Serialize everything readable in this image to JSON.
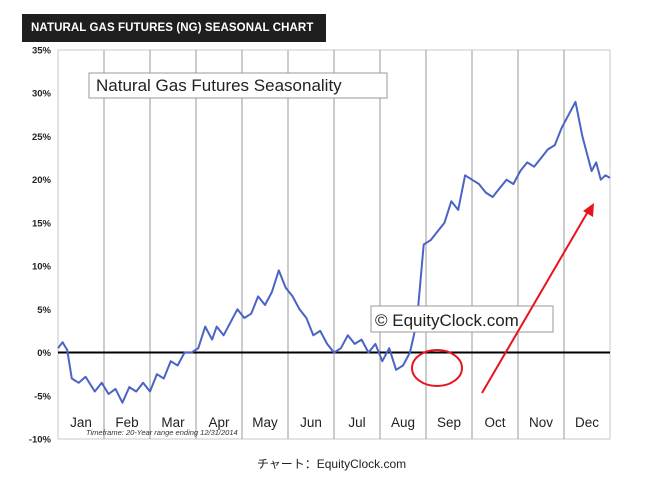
{
  "header": {
    "banner_title": "NATURAL GAS FUTURES (NG) SEASONAL CHART"
  },
  "footer": {
    "caption": "チャート：EquityClock.com"
  },
  "colors": {
    "line": "#4a63c4",
    "annotation": "#e8141c",
    "banner_bg": "#1f1f1f",
    "grid": "#999999"
  },
  "chart_data": {
    "type": "line",
    "title": "Natural Gas Futures Seasonality",
    "watermark": "© EquityClock.com",
    "timeframe_note": "Timeframe: 20-Year range ending 12/31/2014",
    "xlabel": "",
    "ylabel": "",
    "ylim": [
      -10,
      35
    ],
    "xlim": [
      0,
      12
    ],
    "y_ticks": [
      "35%",
      "30%",
      "25%",
      "20%",
      "15%",
      "10%",
      "5%",
      "0%",
      "-5%",
      "-10%"
    ],
    "months": [
      "Jan",
      "Feb",
      "Mar",
      "Apr",
      "May",
      "Jun",
      "Jul",
      "Aug",
      "Sep",
      "Oct",
      "Nov",
      "Dec"
    ],
    "grid": "vertical lines at month boundaries",
    "series": [
      {
        "x": [
          0,
          0.1,
          0.2,
          0.3,
          0.45,
          0.6,
          0.8,
          0.95,
          1.1,
          1.25,
          1.4,
          1.55,
          1.7,
          1.85,
          2.0,
          2.15,
          2.3,
          2.45,
          2.6,
          2.75,
          2.9,
          3.05,
          3.2,
          3.35,
          3.45,
          3.6,
          3.75,
          3.9,
          4.05,
          4.2,
          4.35,
          4.5,
          4.65,
          4.8,
          4.95,
          5.1,
          5.25,
          5.4,
          5.55,
          5.7,
          5.85,
          6.0,
          6.15,
          6.3,
          6.45,
          6.6,
          6.75,
          6.9,
          7.05,
          7.2,
          7.35,
          7.5,
          7.65,
          7.8,
          7.95,
          8.1,
          8.25,
          8.4,
          8.55,
          8.7,
          8.85,
          9.0,
          9.15,
          9.3,
          9.45,
          9.6,
          9.75,
          9.9,
          10.05,
          10.2,
          10.35,
          10.5,
          10.65,
          10.8,
          10.95,
          11.1,
          11.25,
          11.4,
          11.5,
          11.6,
          11.7,
          11.8,
          11.9,
          12.0
        ],
        "values": [
          0.5,
          1.2,
          0.3,
          -3.0,
          -3.5,
          -2.8,
          -4.5,
          -3.5,
          -4.8,
          -4.2,
          -5.8,
          -4.0,
          -4.5,
          -3.5,
          -4.5,
          -2.5,
          -3.0,
          -1.0,
          -1.5,
          0.0,
          0.0,
          0.5,
          3.0,
          1.5,
          3.0,
          2.0,
          3.5,
          5.0,
          4.0,
          4.5,
          6.5,
          5.5,
          7.0,
          9.5,
          7.5,
          6.5,
          5.0,
          4.0,
          2.0,
          2.5,
          1.0,
          0.0,
          0.5,
          2.0,
          1.0,
          1.5,
          0.0,
          1.0,
          -1.0,
          0.5,
          -2.0,
          -1.5,
          0.0,
          3.5,
          12.5,
          13.0,
          14.0,
          15.0,
          17.5,
          16.5,
          20.5,
          20.0,
          19.5,
          18.5,
          18.0,
          19.0,
          20.0,
          19.5,
          21.0,
          22.0,
          21.5,
          22.5,
          23.5,
          24.0,
          26.0,
          27.5,
          29.0,
          25.0,
          23.0,
          21.0,
          22.0,
          20.0,
          20.5,
          20.2
        ]
      }
    ]
  }
}
